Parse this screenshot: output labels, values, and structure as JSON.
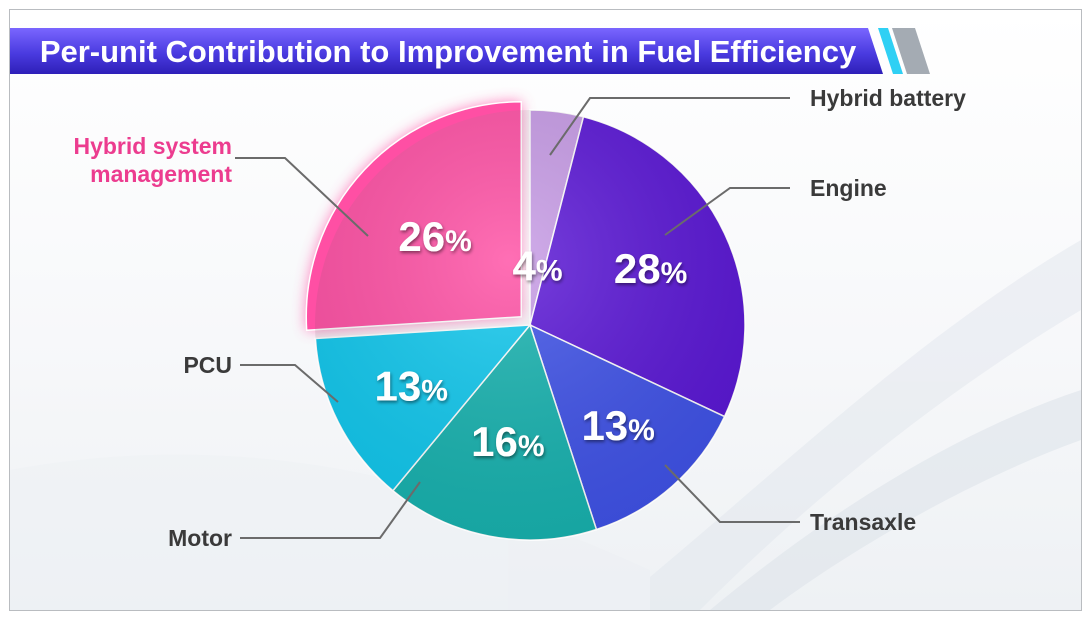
{
  "chart_data": {
    "type": "pie",
    "title": "Per-unit Contribution to Improvement in Fuel Efficiency",
    "slices": [
      {
        "label": "Hybrid battery",
        "value": 4,
        "color": "#c79be6",
        "label_color": "#3a3a3a"
      },
      {
        "label": "Engine",
        "value": 28,
        "color": "#5a16d6",
        "label_color": "#3a3a3a"
      },
      {
        "label": "Transaxle",
        "value": 13,
        "color": "#3f52e8",
        "label_color": "#3a3a3a"
      },
      {
        "label": "Motor",
        "value": 16,
        "color": "#17b3b0",
        "label_color": "#3a3a3a"
      },
      {
        "label": "PCU",
        "value": 13,
        "color": "#10c8ee",
        "label_color": "#3a3a3a"
      },
      {
        "label": "Hybrid system management",
        "label_lines": [
          "Hybrid system",
          "management"
        ],
        "value": 26,
        "color": "#ff4fa4",
        "label_color": "#ec3c8f",
        "highlighted": true
      }
    ],
    "value_suffix": "%"
  },
  "colors": {
    "title_bar": "#4a3be0",
    "title_accent": "#33c8f0",
    "highlight_label": "#ec3c8f"
  }
}
